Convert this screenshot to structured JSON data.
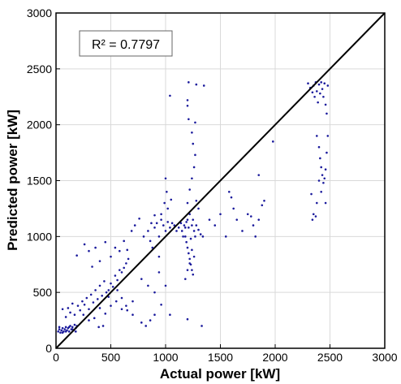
{
  "chart_data": {
    "type": "scatter",
    "title": "",
    "xlabel": "Actual power [kW]",
    "ylabel": "Predicted power [kW]",
    "xlim": [
      0,
      3000
    ],
    "ylim": [
      0,
      3000
    ],
    "xticks": [
      0,
      500,
      1000,
      1500,
      2000,
      2500,
      3000
    ],
    "yticks": [
      0,
      500,
      1000,
      1500,
      2000,
      2500,
      3000
    ],
    "grid": true,
    "annotation": "R² = 0.7797",
    "reference_line": {
      "x": [
        0,
        3000
      ],
      "y": [
        0,
        3000
      ]
    },
    "colors": {
      "points": "#1a1a9c",
      "line": "#000000",
      "grid": "#d9d9d9"
    },
    "series": [
      {
        "points": [
          [
            20,
            150
          ],
          [
            30,
            170
          ],
          [
            40,
            140
          ],
          [
            50,
            160
          ],
          [
            60,
            180
          ],
          [
            70,
            150
          ],
          [
            80,
            170
          ],
          [
            90,
            190
          ],
          [
            100,
            160
          ],
          [
            110,
            180
          ],
          [
            120,
            150
          ],
          [
            130,
            200
          ],
          [
            140,
            170
          ],
          [
            150,
            190
          ],
          [
            160,
            160
          ],
          [
            170,
            210
          ],
          [
            180,
            180
          ],
          [
            190,
            200
          ],
          [
            30,
            190
          ],
          [
            60,
            140
          ],
          [
            90,
            150
          ],
          [
            120,
            190
          ],
          [
            150,
            170
          ],
          [
            180,
            150
          ],
          [
            60,
            350
          ],
          [
            90,
            280
          ],
          [
            110,
            360
          ],
          [
            130,
            320
          ],
          [
            150,
            400
          ],
          [
            170,
            300
          ],
          [
            200,
            380
          ],
          [
            220,
            340
          ],
          [
            240,
            420
          ],
          [
            260,
            390
          ],
          [
            280,
            450
          ],
          [
            300,
            350
          ],
          [
            320,
            480
          ],
          [
            340,
            410
          ],
          [
            360,
            520
          ],
          [
            380,
            440
          ],
          [
            400,
            560
          ],
          [
            420,
            470
          ],
          [
            440,
            600
          ],
          [
            460,
            500
          ],
          [
            480,
            520
          ],
          [
            500,
            580
          ],
          [
            520,
            550
          ],
          [
            540,
            650
          ],
          [
            560,
            610
          ],
          [
            580,
            700
          ],
          [
            600,
            680
          ],
          [
            620,
            720
          ],
          [
            640,
            760
          ],
          [
            660,
            800
          ],
          [
            190,
            830
          ],
          [
            260,
            930
          ],
          [
            300,
            870
          ],
          [
            330,
            730
          ],
          [
            360,
            900
          ],
          [
            400,
            780
          ],
          [
            450,
            950
          ],
          [
            500,
            820
          ],
          [
            540,
            900
          ],
          [
            580,
            870
          ],
          [
            620,
            960
          ],
          [
            650,
            880
          ],
          [
            690,
            1050
          ],
          [
            720,
            1100
          ],
          [
            760,
            1160
          ],
          [
            800,
            1000
          ],
          [
            840,
            1050
          ],
          [
            870,
            1120
          ],
          [
            900,
            1190
          ],
          [
            250,
            300
          ],
          [
            300,
            250
          ],
          [
            350,
            270
          ],
          [
            400,
            360
          ],
          [
            450,
            310
          ],
          [
            500,
            380
          ],
          [
            550,
            420
          ],
          [
            600,
            450
          ],
          [
            650,
            340
          ],
          [
            700,
            300
          ],
          [
            560,
            520
          ],
          [
            480,
            460
          ],
          [
            430,
            200
          ],
          [
            390,
            190
          ],
          [
            600,
            350
          ],
          [
            640,
            380
          ],
          [
            700,
            420
          ],
          [
            780,
            230
          ],
          [
            820,
            200
          ],
          [
            860,
            250
          ],
          [
            900,
            300
          ],
          [
            780,
            620
          ],
          [
            840,
            560
          ],
          [
            900,
            500
          ],
          [
            940,
            680
          ],
          [
            960,
            390
          ],
          [
            1000,
            560
          ],
          [
            940,
            820
          ],
          [
            880,
            900
          ],
          [
            860,
            960
          ],
          [
            1040,
            300
          ],
          [
            1200,
            260
          ],
          [
            1330,
            200
          ],
          [
            900,
            1080
          ],
          [
            920,
            1120
          ],
          [
            940,
            1000
          ],
          [
            960,
            1150
          ],
          [
            980,
            1100
          ],
          [
            1000,
            1050
          ],
          [
            1020,
            1130
          ],
          [
            1040,
            1080
          ],
          [
            1060,
            1120
          ],
          [
            1080,
            1100
          ],
          [
            1100,
            1050
          ],
          [
            1120,
            1080
          ],
          [
            1140,
            1120
          ],
          [
            1160,
            1000
          ],
          [
            1180,
            1080
          ],
          [
            960,
            1200
          ],
          [
            990,
            1300
          ],
          [
            1010,
            1400
          ],
          [
            1000,
            1520
          ],
          [
            1020,
            1250
          ],
          [
            1050,
            1330
          ],
          [
            1150,
            1050
          ],
          [
            1170,
            1100
          ],
          [
            1180,
            1000
          ],
          [
            1190,
            950
          ],
          [
            1200,
            900
          ],
          [
            1210,
            850
          ],
          [
            1220,
            800
          ],
          [
            1230,
            750
          ],
          [
            1240,
            700
          ],
          [
            1250,
            660
          ],
          [
            1200,
            1150
          ],
          [
            1220,
            1200
          ],
          [
            1240,
            1100
          ],
          [
            1260,
            1050
          ],
          [
            1270,
            1000
          ],
          [
            1230,
            980
          ],
          [
            1210,
            1080
          ],
          [
            1190,
            1130
          ],
          [
            1250,
            1150
          ],
          [
            1280,
            1100
          ],
          [
            1300,
            1060
          ],
          [
            1320,
            1020
          ],
          [
            1340,
            1000
          ],
          [
            1180,
            620
          ],
          [
            1200,
            700
          ],
          [
            1220,
            760
          ],
          [
            1260,
            820
          ],
          [
            1240,
            880
          ],
          [
            1200,
            1300
          ],
          [
            1220,
            1420
          ],
          [
            1240,
            1520
          ],
          [
            1260,
            1620
          ],
          [
            1270,
            1730
          ],
          [
            1250,
            1830
          ],
          [
            1240,
            1930
          ],
          [
            1270,
            2020
          ],
          [
            1280,
            1320
          ],
          [
            1300,
            1250
          ],
          [
            1210,
            2050
          ],
          [
            1200,
            2170
          ],
          [
            1200,
            2220
          ],
          [
            1210,
            2380
          ],
          [
            1040,
            2260
          ],
          [
            1280,
            2360
          ],
          [
            1350,
            2350
          ],
          [
            1400,
            1150
          ],
          [
            1450,
            1100
          ],
          [
            1500,
            1200
          ],
          [
            1550,
            1000
          ],
          [
            1580,
            1400
          ],
          [
            1600,
            1350
          ],
          [
            1620,
            1250
          ],
          [
            1650,
            1150
          ],
          [
            1700,
            1050
          ],
          [
            1750,
            1200
          ],
          [
            1780,
            1180
          ],
          [
            1800,
            1100
          ],
          [
            1820,
            1000
          ],
          [
            1850,
            1150
          ],
          [
            1880,
            1280
          ],
          [
            1900,
            1320
          ],
          [
            1850,
            1550
          ],
          [
            1980,
            1850
          ],
          [
            2300,
            2370
          ],
          [
            2320,
            2330
          ],
          [
            2340,
            2290
          ],
          [
            2350,
            2350
          ],
          [
            2360,
            2250
          ],
          [
            2370,
            2380
          ],
          [
            2380,
            2300
          ],
          [
            2390,
            2200
          ],
          [
            2400,
            2360
          ],
          [
            2410,
            2280
          ],
          [
            2420,
            2380
          ],
          [
            2430,
            2320
          ],
          [
            2440,
            2250
          ],
          [
            2450,
            2370
          ],
          [
            2460,
            2180
          ],
          [
            2470,
            2100
          ],
          [
            2480,
            2350
          ],
          [
            2380,
            1900
          ],
          [
            2400,
            1800
          ],
          [
            2410,
            1700
          ],
          [
            2420,
            1620
          ],
          [
            2430,
            1550
          ],
          [
            2440,
            1480
          ],
          [
            2450,
            1520
          ],
          [
            2460,
            1600
          ],
          [
            2470,
            1750
          ],
          [
            2480,
            1900
          ],
          [
            2400,
            1500
          ],
          [
            2420,
            1400
          ],
          [
            2350,
            1200
          ],
          [
            2380,
            1300
          ],
          [
            2340,
            1150
          ],
          [
            2370,
            1180
          ],
          [
            2460,
            1300
          ],
          [
            2330,
            1380
          ]
        ]
      }
    ]
  }
}
